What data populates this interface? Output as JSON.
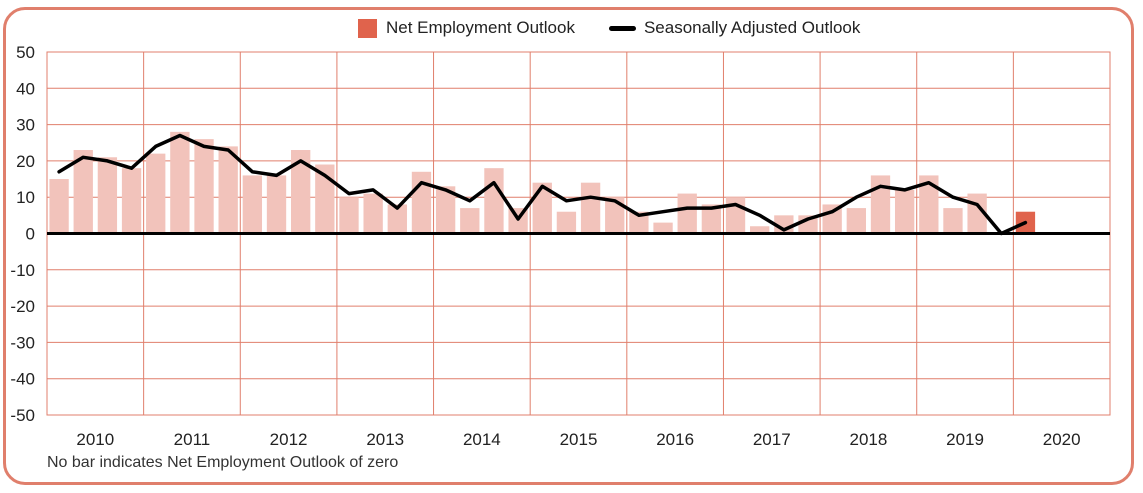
{
  "legend": {
    "bar_label": "Net Employment Outlook",
    "line_label": "Seasonally Adjusted Outlook"
  },
  "footnote": "No bar indicates Net Employment Outlook of zero",
  "colors": {
    "frame": "#e07f6c",
    "grid": "#e07f6c",
    "bar": "#f2c3bb",
    "bar_highlight": "#e0634c",
    "line": "#000000",
    "zero_line": "#000000"
  },
  "chart_data": {
    "type": "bar",
    "title": "",
    "xlabel": "",
    "ylabel": "",
    "ylim": [
      -50,
      50
    ],
    "yticks": [
      50,
      40,
      30,
      20,
      10,
      0,
      -10,
      -20,
      -30,
      -40,
      -50
    ],
    "grid": true,
    "legend_position": "top",
    "year_labels": [
      "2010",
      "2011",
      "2012",
      "2013",
      "2014",
      "2015",
      "2016",
      "2017",
      "2018",
      "2019",
      "2020"
    ],
    "categories": [
      "2010 Q1",
      "2010 Q2",
      "2010 Q3",
      "2010 Q4",
      "2011 Q1",
      "2011 Q2",
      "2011 Q3",
      "2011 Q4",
      "2012 Q1",
      "2012 Q2",
      "2012 Q3",
      "2012 Q4",
      "2013 Q1",
      "2013 Q2",
      "2013 Q3",
      "2013 Q4",
      "2014 Q1",
      "2014 Q2",
      "2014 Q3",
      "2014 Q4",
      "2015 Q1",
      "2015 Q2",
      "2015 Q3",
      "2015 Q4",
      "2016 Q1",
      "2016 Q2",
      "2016 Q3",
      "2016 Q4",
      "2017 Q1",
      "2017 Q2",
      "2017 Q3",
      "2017 Q4",
      "2018 Q1",
      "2018 Q2",
      "2018 Q3",
      "2018 Q4",
      "2019 Q1",
      "2019 Q2",
      "2019 Q3",
      "2019 Q4",
      "2020 Q1"
    ],
    "series": [
      {
        "name": "Net Employment Outlook",
        "type": "bar",
        "values": [
          15,
          23,
          21,
          18,
          22,
          28,
          26,
          24,
          16,
          16,
          23,
          19,
          10,
          11,
          8,
          17,
          13,
          7,
          18,
          7,
          14,
          6,
          14,
          10,
          6,
          3,
          11,
          8,
          10,
          2,
          5,
          5,
          8,
          7,
          16,
          12,
          16,
          7,
          11,
          0,
          6
        ]
      },
      {
        "name": "Seasonally Adjusted Outlook",
        "type": "line",
        "values": [
          17,
          21,
          20,
          18,
          24,
          27,
          24,
          23,
          17,
          16,
          20,
          16,
          11,
          12,
          7,
          14,
          12,
          9,
          14,
          4,
          13,
          9,
          10,
          9,
          5,
          6,
          7,
          7,
          8,
          5,
          1,
          4,
          6,
          10,
          13,
          12,
          14,
          10,
          8,
          0,
          3
        ]
      }
    ]
  }
}
